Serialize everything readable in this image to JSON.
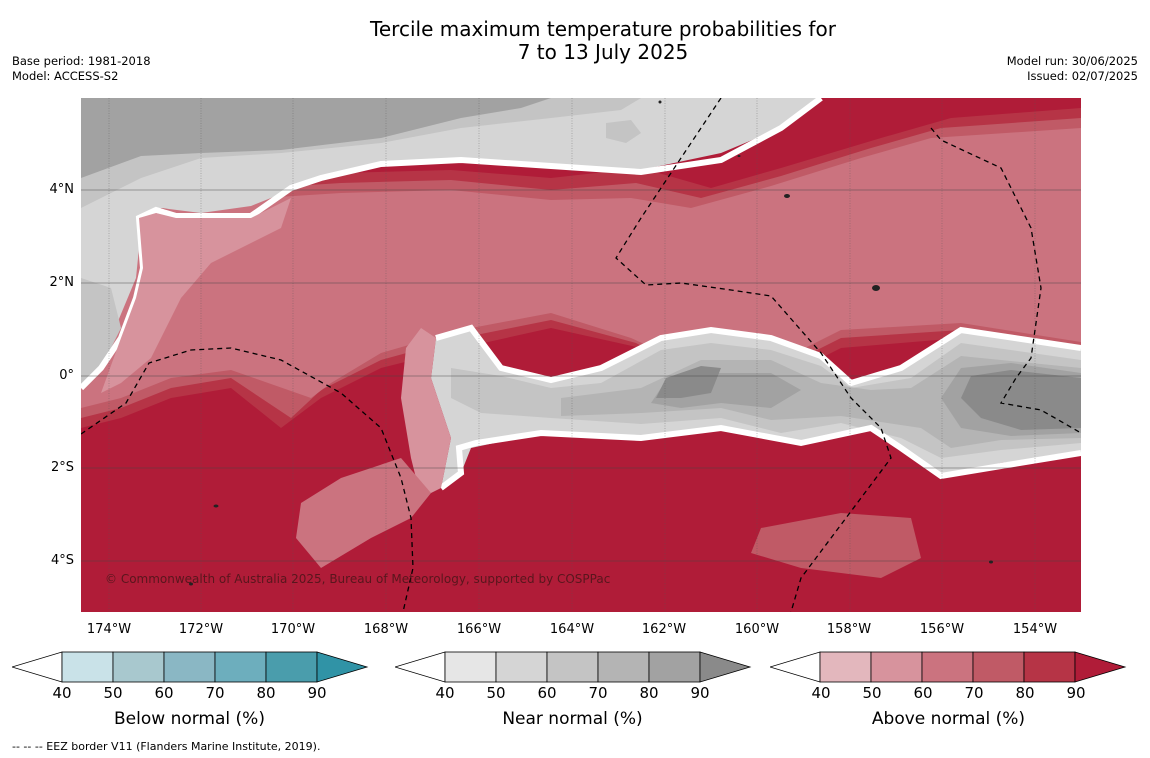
{
  "title_line1": "Tercile maximum temperature probabilities for",
  "title_line2": "7 to 13 July 2025",
  "meta_left": {
    "line1": "Base period: 1981-2018",
    "line2": "Model: ACCESS-S2"
  },
  "meta_right": {
    "line1": "Model run: 30/06/2025",
    "line2": "Issued: 02/07/2025"
  },
  "lat_labels": [
    "4°N",
    "2°N",
    "0°",
    "2°S",
    "4°S"
  ],
  "lon_labels": [
    "174°W",
    "172°W",
    "170°W",
    "168°W",
    "166°W",
    "164°W",
    "162°W",
    "160°W",
    "158°W",
    "156°W",
    "154°W"
  ],
  "copyright": "© Commonwealth of Australia 2025, Bureau of Meteorology, supported by COSPPac",
  "colorbars": [
    {
      "label": "Below normal (%)",
      "ticks": [
        "40",
        "50",
        "60",
        "70",
        "80",
        "90"
      ],
      "colors": [
        "#c9e2e8",
        "#a8c8ce",
        "#8ab7c4",
        "#6daebd",
        "#4a9dac",
        "#3093a6"
      ]
    },
    {
      "label": "Near normal (%)",
      "ticks": [
        "40",
        "50",
        "60",
        "70",
        "80",
        "90"
      ],
      "colors": [
        "#e6e6e6",
        "#d5d5d5",
        "#c4c4c4",
        "#b4b4b4",
        "#a2a2a2",
        "#8a8a8a"
      ]
    },
    {
      "label": "Above normal (%)",
      "ticks": [
        "40",
        "50",
        "60",
        "70",
        "80",
        "90"
      ],
      "colors": [
        "#e3b7bd",
        "#d7939d",
        "#cb737f",
        "#c05a66",
        "#b63446",
        "#b01c38"
      ]
    }
  ],
  "footer": "--  --  -- EEZ border V11 (Flanders Marine Institute, 2019)."
}
